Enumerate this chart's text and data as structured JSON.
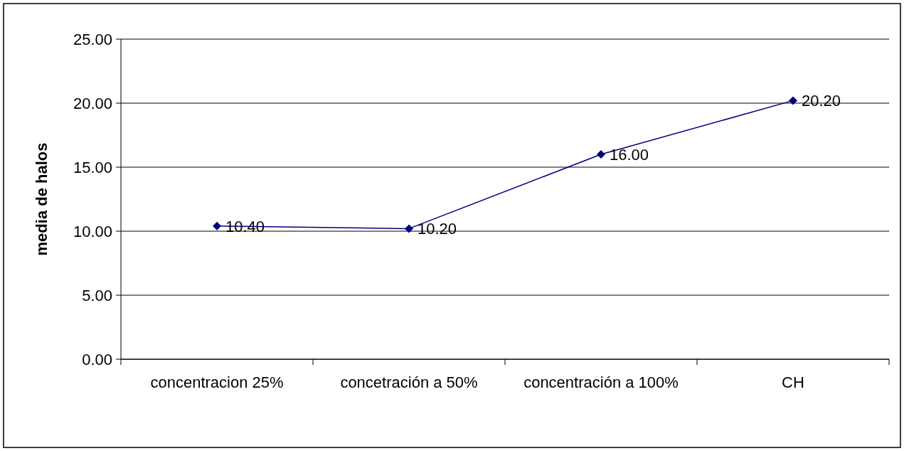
{
  "chart_data": {
    "type": "line",
    "ylabel": "media de halos",
    "categories": [
      "concentracion 25%",
      "concetración a 50%",
      "concentración a 100%",
      "CH"
    ],
    "series": [
      {
        "color": "#000080",
        "values": [
          10.4,
          10.2,
          16.0,
          20.2
        ],
        "value_labels": [
          "10.40",
          "10.20",
          "16.00",
          "20.20"
        ]
      }
    ],
    "ylim": [
      0,
      25
    ],
    "yticks": [
      {
        "value": 0,
        "label": "0.00"
      },
      {
        "value": 5,
        "label": "5.00"
      },
      {
        "value": 10,
        "label": "10.00"
      },
      {
        "value": 15,
        "label": "15.00"
      },
      {
        "value": 20,
        "label": "20.00"
      },
      {
        "value": 25,
        "label": "25.00"
      }
    ],
    "grid": "y",
    "marker": "diamond",
    "line_style": "solid"
  }
}
